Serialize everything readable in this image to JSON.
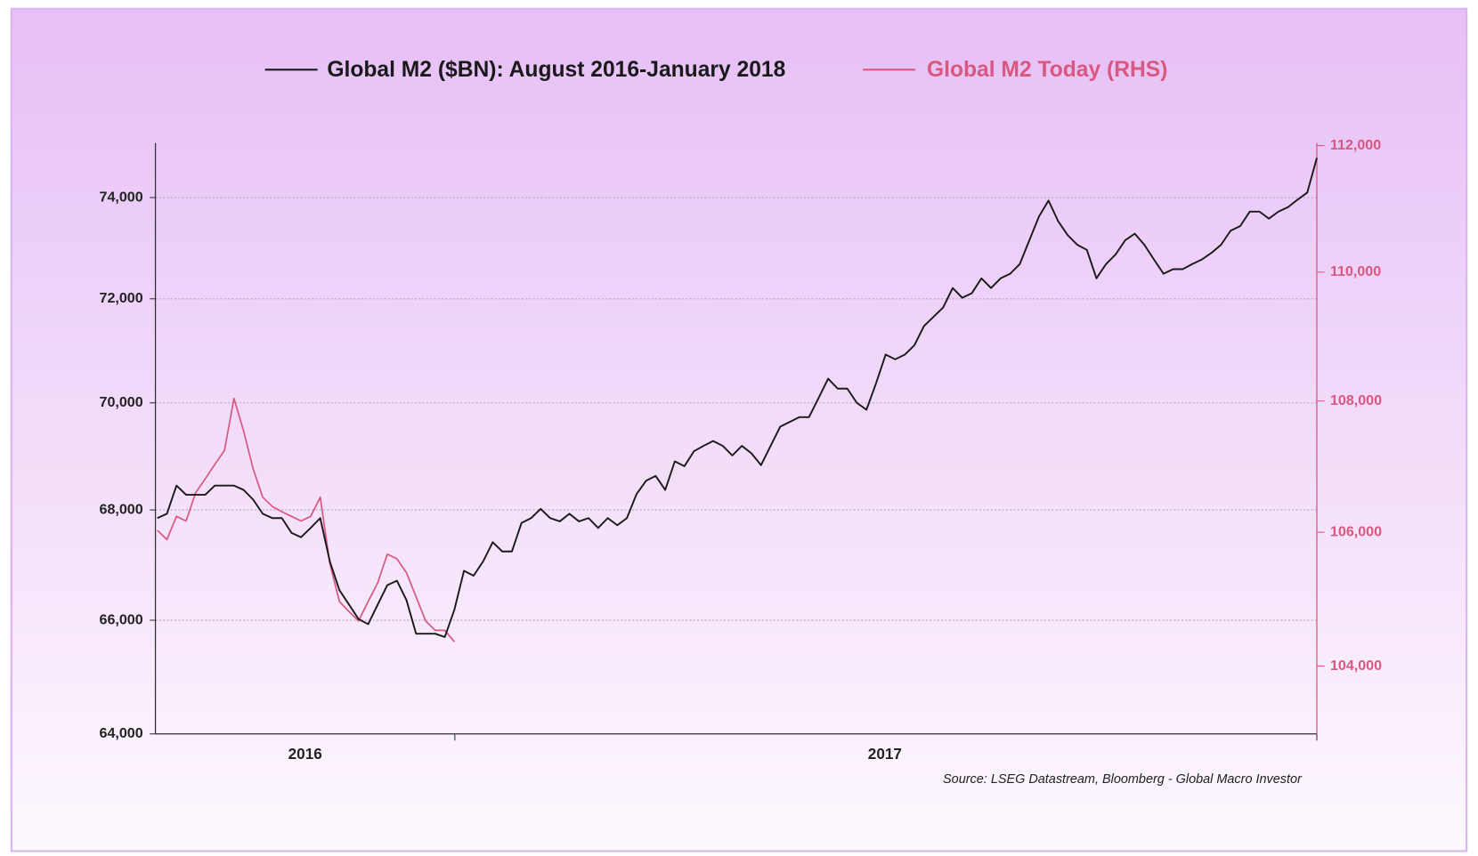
{
  "chart_data": {
    "type": "line",
    "series": [
      {
        "name": "Global M2 ($BN): August 2016-January 2018",
        "color": "#1a1a1a",
        "axis": "y",
        "values": [
          67850,
          67930,
          68450,
          68280,
          68280,
          68280,
          68450,
          68450,
          68450,
          68370,
          68190,
          67930,
          67850,
          67850,
          67580,
          67500,
          67670,
          67850,
          67060,
          66540,
          66280,
          66020,
          65930,
          66280,
          66630,
          66710,
          66360,
          65760,
          65760,
          65760,
          65700,
          66190,
          66890,
          66800,
          67060,
          67410,
          67240,
          67240,
          67760,
          67850,
          68020,
          67850,
          67790,
          67930,
          67790,
          67850,
          67670,
          67850,
          67720,
          67850,
          68290,
          68540,
          68630,
          68370,
          68900,
          68810,
          69090,
          69190,
          69280,
          69190,
          69010,
          69190,
          69050,
          68830,
          69190,
          69550,
          69640,
          69730,
          69730,
          70090,
          70460,
          70270,
          70270,
          70000,
          69870,
          70370,
          70920,
          70830,
          70920,
          71100,
          71470,
          71650,
          71830,
          72210,
          72020,
          72110,
          72400,
          72210,
          72400,
          72490,
          72680,
          73150,
          73620,
          73940,
          73530,
          73250,
          73060,
          72960,
          72400,
          72680,
          72870,
          73150,
          73280,
          73060,
          72770,
          72490,
          72580,
          72580,
          72680,
          72770,
          72900,
          73060,
          73340,
          73430,
          73720,
          73720,
          73580,
          73720,
          73810,
          73960,
          74100,
          74800
        ]
      },
      {
        "name": "Global M2 Today (RHS)",
        "color": "#d9587f",
        "axis": "y2",
        "values": [
          106030,
          105890,
          106240,
          106170,
          106600,
          106810,
          107030,
          107240,
          108040,
          107540,
          106960,
          106530,
          106390,
          106310,
          106240,
          106170,
          106240,
          106530,
          105530,
          104960,
          104810,
          104670,
          104960,
          105240,
          105670,
          105600,
          105390,
          105030,
          104670,
          104530,
          104530,
          104360
        ]
      }
    ],
    "x_labels": [
      "2016",
      "2017"
    ],
    "ylim": [
      64000,
      75100
    ],
    "yticks": [
      {
        "value": 64000,
        "label": "64,000"
      },
      {
        "value": 66000,
        "label": "66,000"
      },
      {
        "value": 68000,
        "label": "68,000"
      },
      {
        "value": 70000,
        "label": "70,000"
      },
      {
        "value": 72000,
        "label": "72,000"
      },
      {
        "value": 74000,
        "label": "74,000"
      }
    ],
    "y_log_scale": true,
    "y2lim": [
      103000,
      112040
    ],
    "y2ticks": [
      {
        "value": 104000,
        "label": "104,000"
      },
      {
        "value": 106000,
        "label": "106,000"
      },
      {
        "value": 108000,
        "label": "108,000"
      },
      {
        "value": 110000,
        "label": "110,000"
      },
      {
        "value": 112000,
        "label": "112,000"
      }
    ],
    "y2_log_scale": true,
    "grid": true,
    "source": "Source: LSEG Datastream, Bloomberg - Global Macro Investor"
  }
}
